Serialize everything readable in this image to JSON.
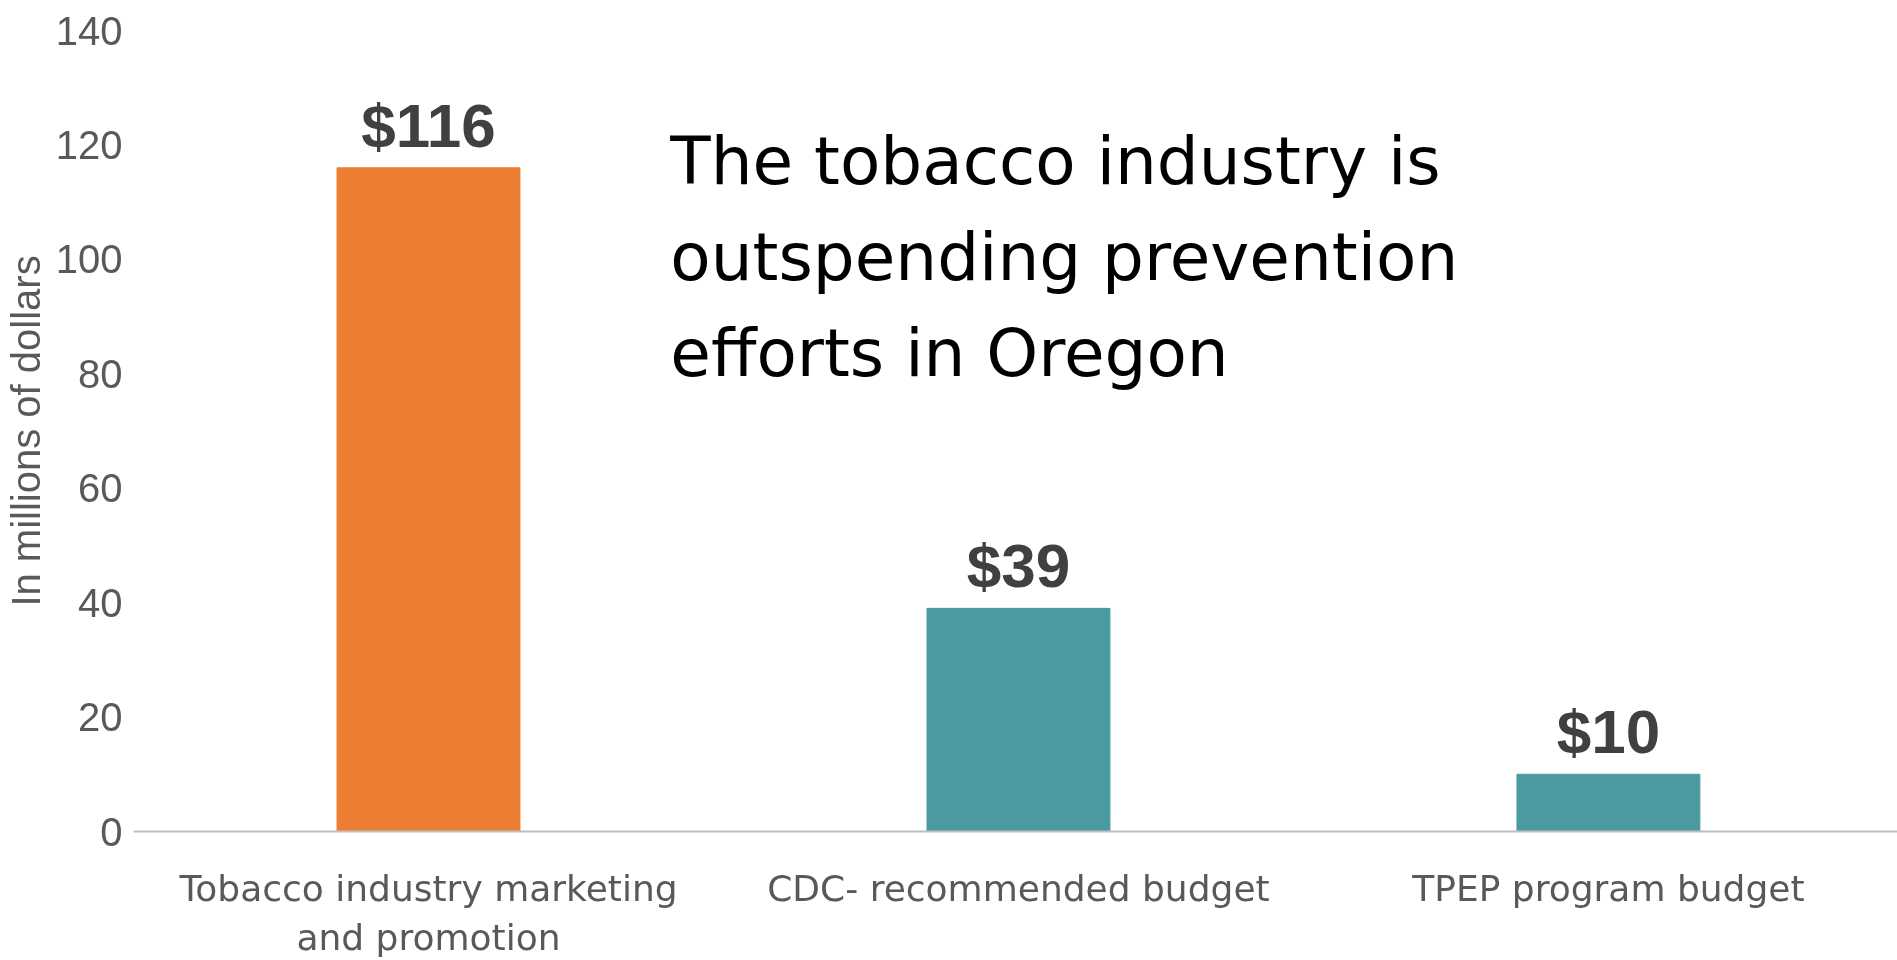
{
  "chart_data": {
    "type": "bar",
    "ylabel": "In millions of dollars",
    "categories": [
      "Tobacco industry marketing and promotion",
      "CDC- recommended budget",
      "TPEP program budget"
    ],
    "values": [
      116,
      39,
      10
    ],
    "colors": [
      "#ed7d31",
      "#4a9aa0",
      "#4a9aa0"
    ],
    "value_labels": [
      "$116",
      "$39",
      "$10"
    ],
    "ylim": [
      0,
      140
    ],
    "yticks": [
      0,
      20,
      40,
      60,
      80,
      100,
      120,
      140
    ],
    "grid": false,
    "annotations": [
      "The tobacco industry is outspending prevention efforts in Oregon"
    ]
  }
}
